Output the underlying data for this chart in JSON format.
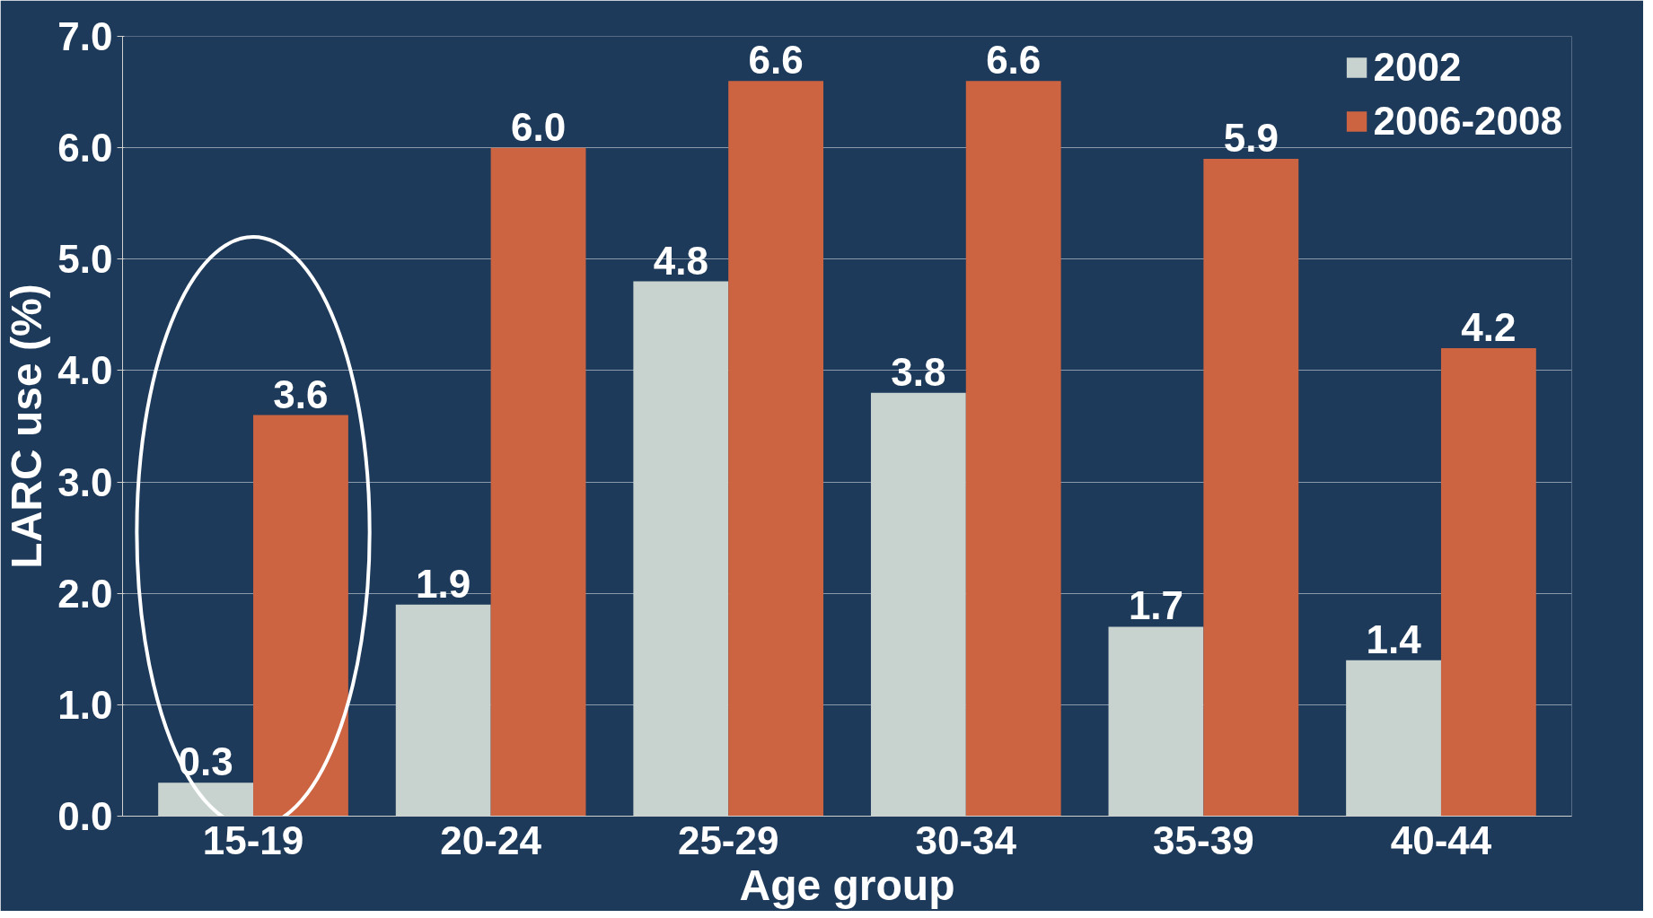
{
  "chart_data": {
    "type": "bar",
    "xlabel": "Age group",
    "ylabel": "LARC use (%)",
    "categories": [
      "15-19",
      "20-24",
      "25-29",
      "30-34",
      "35-39",
      "40-44"
    ],
    "series": [
      {
        "name": "2002",
        "color": "#c8d3cf",
        "values": [
          0.3,
          1.9,
          4.8,
          3.8,
          1.7,
          1.4
        ],
        "value_labels": [
          "0.3",
          "1.9",
          "4.8",
          "3.8",
          "1.7",
          "1.4"
        ]
      },
      {
        "name": "2006-2008",
        "color": "#cc6442",
        "values": [
          3.6,
          6.0,
          6.6,
          6.6,
          5.9,
          4.2
        ],
        "value_labels": [
          "3.6",
          "6.0",
          "6.6",
          "6.6",
          "5.9",
          "4.2"
        ]
      }
    ],
    "ylim": [
      0,
      7
    ],
    "yticks": [
      {
        "value": 0,
        "label": "0.0"
      },
      {
        "value": 1,
        "label": "1.0"
      },
      {
        "value": 2,
        "label": "2.0"
      },
      {
        "value": 3,
        "label": "3.0"
      },
      {
        "value": 4,
        "label": "4.0"
      },
      {
        "value": 5,
        "label": "5.0"
      },
      {
        "value": 6,
        "label": "6.0"
      },
      {
        "value": 7,
        "label": "7.0"
      }
    ],
    "grid": "y",
    "legend": "top right"
  }
}
